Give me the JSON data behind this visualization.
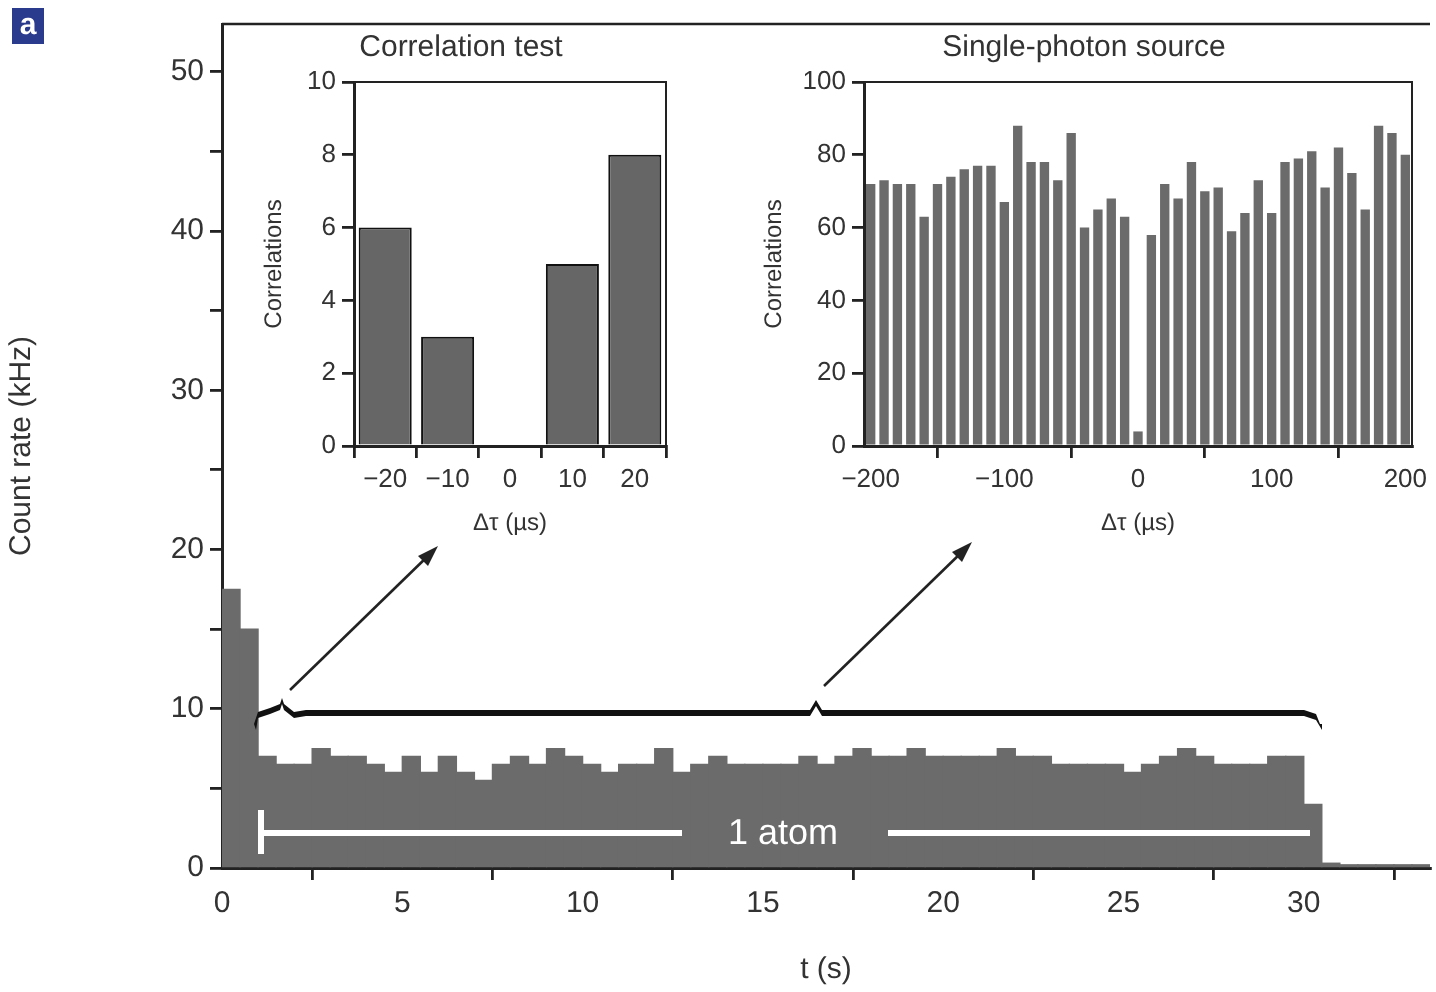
{
  "chart_data": [
    {
      "type": "histogram",
      "xlabel": "t (s)",
      "ylabel": "Count rate (kHz)",
      "color": "#6b6b6b",
      "bins": [
        0,
        0.5,
        1,
        1.5,
        2,
        2.5,
        3,
        3.5,
        4,
        4.5,
        5,
        5.5,
        6,
        6.5,
        7,
        7.5,
        8,
        8.5,
        9,
        9.5,
        10,
        10.5,
        11,
        11.5,
        12,
        12.5,
        13,
        13.5,
        14,
        14.5,
        15,
        15.5,
        16,
        16.5,
        17,
        17.5,
        18,
        18.5,
        19,
        19.5,
        20,
        20.5,
        21,
        21.5,
        22,
        22.5,
        23,
        23.5,
        24,
        24.5,
        25,
        25.5,
        26,
        26.5,
        27,
        27.5,
        28,
        28.5,
        29,
        29.5,
        30,
        30.5,
        31,
        31.5,
        32,
        32.5,
        33,
        33.5
      ],
      "values": [
        17.5,
        15,
        7,
        6.5,
        6.5,
        7.5,
        7,
        7,
        6.5,
        6,
        7,
        6,
        7,
        6,
        5.5,
        6.5,
        7,
        6.5,
        7.5,
        7,
        6.5,
        6,
        6.5,
        6.5,
        7.5,
        6,
        6.5,
        7,
        6.5,
        6.5,
        6.5,
        6.5,
        7,
        6.5,
        7,
        7.5,
        7,
        7,
        7.5,
        7,
        7,
        7,
        7,
        7.5,
        7,
        7,
        6.5,
        6.5,
        6.5,
        6.5,
        6,
        6.5,
        7,
        7.5,
        7,
        6.5,
        6.5,
        6.5,
        7,
        7,
        4,
        0.3,
        0.2,
        0.2,
        0.2,
        0.2,
        0.2
      ],
      "xlim": [
        0,
        33.5
      ],
      "xticks": [
        0,
        5,
        10,
        15,
        20,
        25,
        30
      ],
      "ylim": [
        0,
        53
      ],
      "yticks": [
        0,
        {
          "value": 5,
          "label": null
        },
        10,
        {
          "value": 15,
          "label": null
        },
        20,
        {
          "value": 25,
          "label": null
        },
        30,
        {
          "value": 35,
          "label": null
        },
        40,
        {
          "value": 45,
          "label": null
        },
        50
      ],
      "annotations": [
        "a",
        "1 atom"
      ]
    },
    {
      "type": "bar",
      "title": "Correlation test",
      "xlabel": "Δτ (µs)",
      "ylabel": "Correlations",
      "color": "#666666",
      "x": [
        -20,
        -10,
        0,
        10,
        20
      ],
      "values": [
        6,
        3,
        0,
        5,
        8
      ],
      "xlim": [
        -25,
        25
      ],
      "xticks": [
        {
          "value": -20,
          "label": "−20"
        },
        {
          "value": -10,
          "label": "−10"
        },
        0,
        10,
        20
      ],
      "ylim": [
        0,
        10
      ],
      "yticks": [
        0,
        2,
        4,
        6,
        8,
        10
      ]
    },
    {
      "type": "bar",
      "title": "Single-photon source",
      "xlabel": "Δτ (µs)",
      "ylabel": "Correlations",
      "color": "#6b6b6b",
      "x": [
        -200,
        -190,
        -180,
        -170,
        -160,
        -150,
        -140,
        -130,
        -120,
        -110,
        -100,
        -90,
        -80,
        -70,
        -60,
        -50,
        -40,
        -30,
        -20,
        -10,
        0,
        10,
        20,
        30,
        40,
        50,
        60,
        70,
        80,
        90,
        100,
        110,
        120,
        130,
        140,
        150,
        160,
        170,
        180,
        190,
        200
      ],
      "values": [
        72,
        73,
        72,
        72,
        63,
        72,
        74,
        76,
        77,
        77,
        67,
        88,
        78,
        78,
        73,
        86,
        60,
        65,
        68,
        63,
        4,
        58,
        72,
        68,
        78,
        70,
        71,
        59,
        64,
        73,
        64,
        78,
        79,
        81,
        71,
        82,
        75,
        65,
        88,
        86,
        80
      ],
      "xlim": [
        -205,
        205
      ],
      "xticks": [
        {
          "value": -200,
          "label": "−200"
        },
        {
          "value": -100,
          "label": "−100"
        },
        0,
        100,
        200
      ],
      "ylim": [
        0,
        100
      ],
      "yticks": [
        0,
        20,
        40,
        60,
        80,
        100
      ]
    }
  ]
}
